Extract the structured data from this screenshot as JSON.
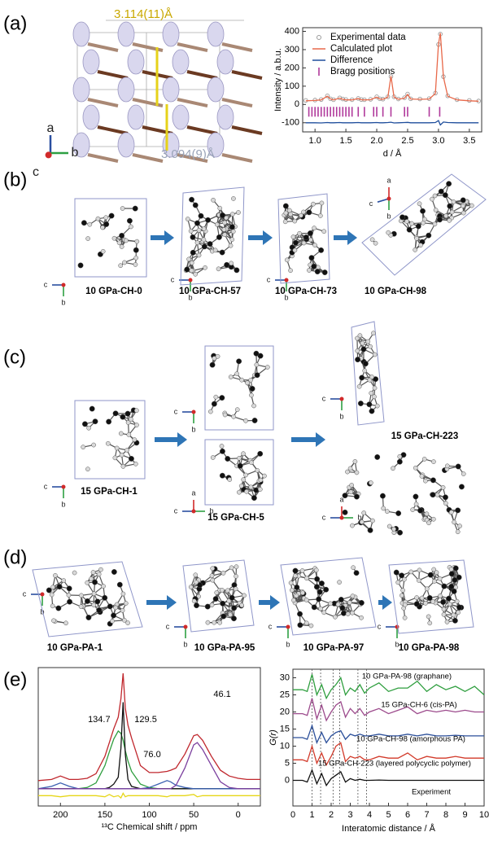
{
  "figure": {
    "panel_labels": [
      "(a)",
      "(b)",
      "(c)",
      "(d)",
      "(e)"
    ],
    "distances": [
      "3.114(11)Å",
      "3.094(9)Å"
    ],
    "structures": [
      "10 GPa-CH-0",
      "10 GPa-CH-57",
      "10 GPa-CH-73",
      "10 GPa-CH-98",
      "15 GPa-CH-1",
      "15 GPa-CH-5",
      "15 GPa-CH-223",
      "10 GPa-PA-1",
      "10 GPa-PA-95",
      "10 GPa-PA-97",
      "10 GPa-PA-98"
    ],
    "triads": [
      [
        "a",
        "b",
        "c"
      ],
      [
        "c",
        "b"
      ],
      [
        "c",
        "b"
      ],
      [
        "c",
        "b"
      ],
      [
        "a",
        "c",
        "b"
      ],
      [
        "c",
        "b"
      ],
      [
        "c",
        "b"
      ],
      [
        "a",
        "c",
        "b"
      ],
      [
        "c",
        "b"
      ],
      [
        "a",
        "c",
        "b"
      ],
      [
        "c",
        "b"
      ],
      [
        "c",
        "b"
      ],
      [
        "c",
        "b"
      ],
      [
        "c",
        "b"
      ]
    ]
  },
  "chart_data": [
    {
      "type": "line",
      "y_label": "Intensity / a.b.u.",
      "x_label": "d / Å",
      "legend": "upper left",
      "xlim": [
        0.8,
        3.7
      ],
      "ylim": [
        -150,
        420
      ],
      "xticks": [
        {
          "value": 1,
          "label": "1.0"
        },
        1.5,
        {
          "value": 2,
          "label": "2.0"
        },
        2.5,
        {
          "value": 3,
          "label": "3.0"
        },
        3.5
      ],
      "yticks": [
        -100,
        0,
        100,
        200,
        300,
        400
      ],
      "x": [
        0.85,
        1.0,
        1.1,
        1.2,
        1.25,
        1.3,
        1.4,
        1.45,
        1.5,
        1.6,
        1.7,
        1.75,
        1.8,
        1.9,
        2.0,
        2.05,
        2.1,
        2.18,
        2.23,
        2.28,
        2.35,
        2.45,
        2.5,
        2.55,
        2.7,
        2.85,
        2.95,
        3.0,
        3.03,
        3.08,
        3.15,
        3.3,
        3.5,
        3.65
      ],
      "series": [
        {
          "name": "Experimental data",
          "color": "#9a9a9a",
          "marker": "circle",
          "values": [
            22,
            24,
            27,
            47,
            31,
            26,
            36,
            30,
            27,
            26,
            33,
            27,
            26,
            28,
            42,
            31,
            29,
            42,
            153,
            42,
            30,
            37,
            57,
            31,
            30,
            32,
            62,
            328,
            385,
            152,
            47,
            26,
            22,
            19
          ]
        },
        {
          "name": "Calculated plot",
          "color": "#e8694a",
          "marker": "line",
          "values": [
            20,
            22,
            25,
            45,
            30,
            25,
            35,
            28,
            25,
            25,
            32,
            26,
            25,
            26,
            40,
            30,
            28,
            40,
            155,
            40,
            28,
            35,
            55,
            30,
            28,
            30,
            60,
            330,
            390,
            150,
            45,
            25,
            20,
            18
          ]
        },
        {
          "name": "Difference",
          "color": "#1f4e9c",
          "marker": "line",
          "values": [
            -100,
            -100,
            -101,
            -99,
            -100,
            -100,
            -99,
            -100,
            -100,
            -100,
            -99,
            -100,
            -100,
            -100,
            -99,
            -100,
            -100,
            -99,
            -97,
            -101,
            -100,
            -99,
            -98,
            -100,
            -100,
            -100,
            -99,
            -88,
            -112,
            -96,
            -99,
            -100,
            -100,
            -100
          ]
        },
        {
          "name": "Bragg positions",
          "color": "#b0399b",
          "marker": "tick",
          "x": [
            0.9,
            0.95,
            1.0,
            1.05,
            1.1,
            1.15,
            1.2,
            1.25,
            1.3,
            1.35,
            1.4,
            1.45,
            1.5,
            1.55,
            1.6,
            1.7,
            1.8,
            1.95,
            2.0,
            2.1,
            2.23,
            2.45,
            2.5,
            2.85,
            3.02
          ],
          "values": [
            -40,
            -40,
            -40,
            -40,
            -40,
            -40,
            -40,
            -40,
            -40,
            -40,
            -40,
            -40,
            -40,
            -40,
            -40,
            -40,
            -40,
            -40,
            -40,
            -40,
            -40,
            -40,
            -40,
            -40,
            -40
          ]
        }
      ]
    },
    {
      "type": "line",
      "x_label": "¹³C Chemical shift / ppm",
      "xlim": [
        225,
        -25
      ],
      "ylim": [
        -15,
        105
      ],
      "xticks": [
        200,
        150,
        100,
        50,
        0
      ],
      "peak_labels": [
        134.7,
        129.5,
        {
          "value": 76,
          "label": "76.0"
        },
        46.1
      ],
      "x": [
        225,
        210,
        200,
        190,
        180,
        170,
        160,
        150,
        145,
        140,
        135,
        132,
        129.5,
        127,
        124,
        120,
        110,
        100,
        90,
        80,
        76,
        70,
        60,
        50,
        46,
        40,
        30,
        20,
        10,
        0,
        -10,
        -25
      ],
      "series": [
        {
          "color": "#c0272d",
          "marker": "line",
          "values": [
            7,
            8,
            11,
            8,
            8,
            9,
            13,
            28,
            40,
            52,
            62,
            78,
            100,
            70,
            55,
            44,
            20,
            14,
            14,
            15,
            16,
            18,
            30,
            46,
            47,
            42,
            28,
            16,
            11,
            9,
            8,
            8
          ]
        },
        {
          "color": "#2e9e3e",
          "marker": "line",
          "values": [
            0,
            0,
            0,
            0,
            0,
            1,
            5,
            20,
            32,
            43,
            50,
            48,
            42,
            33,
            24,
            15,
            4,
            1,
            0,
            0,
            0,
            0,
            0,
            0,
            0,
            0,
            0,
            0,
            0,
            0,
            0,
            0
          ]
        },
        {
          "color": "#111111",
          "marker": "line",
          "values": [
            0,
            0,
            0,
            0,
            0,
            0,
            0,
            0,
            1,
            4,
            10,
            35,
            75,
            30,
            8,
            2,
            0,
            0,
            0,
            0,
            0,
            0,
            0,
            0,
            0,
            0,
            0,
            0,
            0,
            0,
            0,
            0
          ]
        },
        {
          "color": "#3a5fb0",
          "marker": "line",
          "values": [
            0,
            2,
            5,
            2,
            0,
            0,
            0,
            0,
            0,
            0,
            0,
            0,
            0,
            0,
            0,
            0,
            0,
            1,
            4,
            7,
            6,
            3,
            1,
            0,
            0,
            0,
            0,
            0,
            0,
            0,
            0,
            0
          ]
        },
        {
          "color": "#7b3f9e",
          "marker": "line",
          "values": [
            0,
            0,
            0,
            0,
            0,
            0,
            0,
            0,
            0,
            0,
            0,
            0,
            0,
            0,
            0,
            0,
            0,
            0,
            0,
            0,
            0,
            3,
            18,
            38,
            40,
            34,
            20,
            6,
            1,
            0,
            0,
            0
          ]
        },
        {
          "color": "#e6d619",
          "marker": "line",
          "values": [
            -6,
            -6,
            -7,
            -6,
            -6,
            -6,
            -6,
            -7,
            -5,
            -7,
            -6,
            -8,
            -4,
            -7,
            -6,
            -6,
            -6,
            -6,
            -6,
            -7,
            -6,
            -6,
            -6,
            -5,
            -7,
            -6,
            -6,
            -6,
            -6,
            -6,
            -6,
            -6
          ]
        }
      ]
    },
    {
      "type": "line",
      "y_label": "G(r)",
      "x_label": "Interatomic distance / Å",
      "series_labels": true,
      "xlim": [
        0,
        10
      ],
      "ylim": [
        -7.5,
        32.5
      ],
      "xticks": [
        0,
        1,
        2,
        3,
        4,
        5,
        6,
        7,
        8,
        9,
        10
      ],
      "yticks": [
        0,
        5,
        10,
        15,
        20,
        25,
        30
      ],
      "vlines": [
        1.0,
        1.45,
        2.1,
        2.45,
        3.4,
        3.85
      ],
      "x": [
        0,
        0.25,
        0.5,
        0.75,
        1,
        1.25,
        1.5,
        1.75,
        2,
        2.25,
        2.5,
        2.75,
        3,
        3.25,
        3.5,
        3.75,
        4,
        4.5,
        5,
        5.5,
        6,
        6.5,
        7,
        7.5,
        8,
        8.5,
        9,
        9.5,
        10
      ],
      "series": [
        {
          "name": "10 GPa-PA-98 (graphane)",
          "color": "#2e9e3e",
          "marker": "line",
          "values": [
            26.5,
            26.5,
            26.5,
            26,
            31,
            25,
            28,
            24,
            26.5,
            28,
            30,
            25,
            27,
            26,
            28,
            25.5,
            27,
            28.5,
            26,
            27,
            27,
            29,
            26,
            28,
            26.5,
            27.5,
            26,
            27.5,
            25
          ]
        },
        {
          "name": "15 GPa-CH-6 (cis-PA)",
          "color": "#9c4a8c",
          "marker": "line",
          "values": [
            19.5,
            19.5,
            19.5,
            19,
            24,
            18,
            22,
            17.5,
            20,
            22,
            23,
            18.5,
            21,
            19.5,
            21,
            19,
            20,
            21,
            19.5,
            20.5,
            21.5,
            19.5,
            20.5,
            20,
            20.5,
            20,
            20.5,
            20,
            20
          ]
        },
        {
          "name": "10 GPa-CH-98 (amorphous PA)",
          "color": "#2b4f9a",
          "marker": "line",
          "values": [
            12.5,
            12.5,
            12.5,
            12,
            16,
            11,
            14,
            11,
            13,
            14,
            14.5,
            12,
            13.5,
            13,
            13.5,
            13,
            13,
            13.5,
            13,
            13,
            13.5,
            13,
            13.5,
            13,
            13,
            13.2,
            13,
            13,
            13
          ]
        },
        {
          "name": "15 GPa-CH-223 (layered polycyclic polymer)",
          "color": "#d23a2a",
          "marker": "line",
          "values": [
            6,
            6,
            6,
            5.5,
            10,
            5,
            8,
            4.5,
            7,
            10,
            11,
            5.5,
            7,
            6.5,
            7,
            6,
            6,
            7,
            6.5,
            6.5,
            8,
            6,
            7,
            6.5,
            6.5,
            7,
            6.5,
            6.5,
            6.5
          ]
        },
        {
          "name": "Experiment",
          "color": "#111111",
          "marker": "line",
          "values": [
            0,
            0,
            0,
            -0.5,
            3,
            -1,
            2,
            -1.5,
            0.5,
            1.5,
            2.5,
            -0.5,
            0.5,
            0,
            0.3,
            0,
            0,
            0.1,
            0,
            0,
            0,
            0,
            0,
            0,
            0,
            0,
            0,
            0,
            0
          ]
        }
      ]
    }
  ]
}
